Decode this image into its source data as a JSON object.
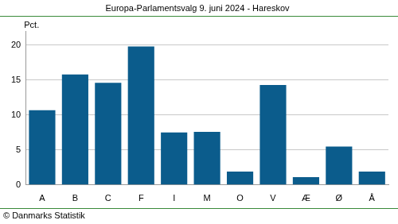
{
  "chart_data": {
    "type": "bar",
    "title": "Europa-Parlamentsvalg 9. juni 2024 - Hareskov",
    "ylabel": "Pct.",
    "source": "© Danmarks Statistik",
    "categories": [
      "A",
      "B",
      "C",
      "F",
      "I",
      "M",
      "O",
      "V",
      "Æ",
      "Ø",
      "Å"
    ],
    "values": [
      10.7,
      15.8,
      14.6,
      19.8,
      7.5,
      7.6,
      1.9,
      14.3,
      1.1,
      5.5,
      1.9
    ],
    "color": "#0b5c8c",
    "ylim": [
      0,
      22
    ],
    "yticks": [
      0,
      5,
      10,
      15,
      20
    ],
    "grid": true
  }
}
